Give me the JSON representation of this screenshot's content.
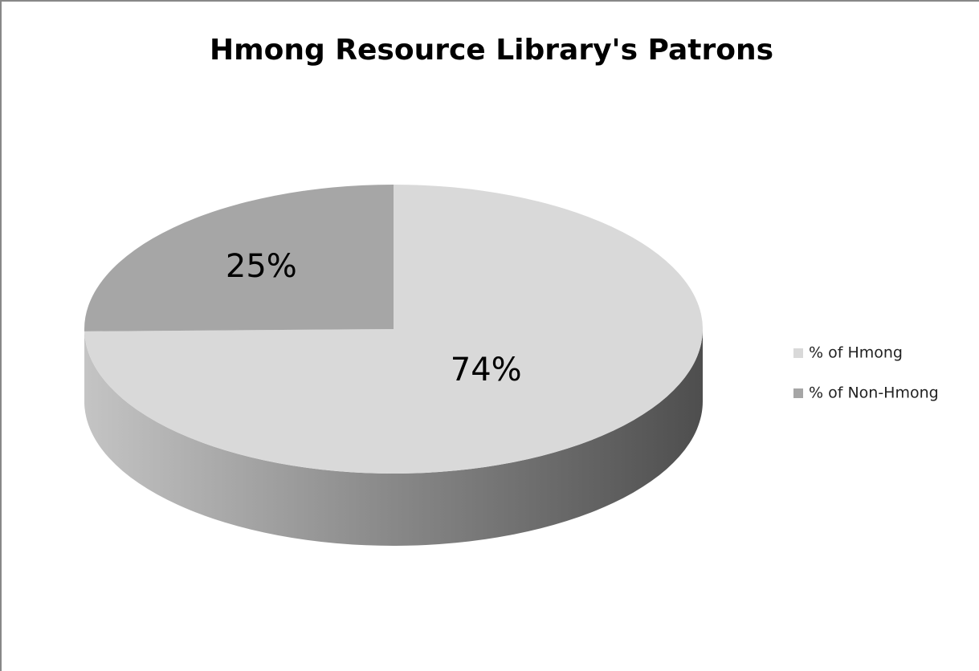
{
  "chart_data": {
    "type": "pie3d",
    "title": "Hmong Resource Library's Patrons",
    "categories": [
      "% of Hmong",
      "% of Non-Hmong"
    ],
    "values": [
      74,
      25
    ],
    "value_labels": [
      "74%",
      "25%"
    ],
    "colors": [
      "#d9d9d9",
      "#a6a6a6"
    ],
    "legend": "right"
  }
}
